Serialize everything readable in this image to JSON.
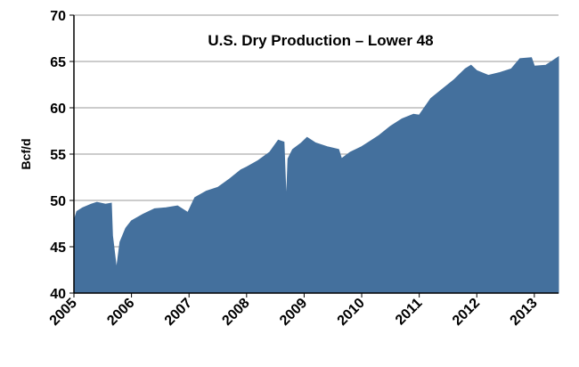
{
  "chart_data": {
    "type": "area",
    "title": "U.S. Dry Production – Lower 48",
    "y_label": "Bcf/d",
    "color": "#44709d",
    "grid": true,
    "xlim": [
      2005,
      2013.42
    ],
    "xticks": [
      2005,
      2006,
      2007,
      2008,
      2009,
      2010,
      2011,
      2012,
      2013
    ],
    "ylim": [
      40,
      70
    ],
    "yticks": [
      40,
      45,
      50,
      55,
      60,
      65,
      70
    ],
    "x": [
      2005.0,
      2005.05,
      2005.15,
      2005.3,
      2005.4,
      2005.55,
      2005.65,
      2005.67,
      2005.74,
      2005.8,
      2005.9,
      2006.0,
      2006.2,
      2006.4,
      2006.6,
      2006.8,
      2006.98,
      2007.1,
      2007.3,
      2007.5,
      2007.7,
      2007.9,
      2008.0,
      2008.2,
      2008.4,
      2008.55,
      2008.65,
      2008.69,
      2008.72,
      2008.8,
      2008.95,
      2009.05,
      2009.2,
      2009.4,
      2009.6,
      2009.65,
      2009.8,
      2010.0,
      2010.1,
      2010.3,
      2010.5,
      2010.7,
      2010.9,
      2011.0,
      2011.2,
      2011.4,
      2011.6,
      2011.8,
      2011.9,
      2012.0,
      2012.2,
      2012.4,
      2012.6,
      2012.75,
      2012.95,
      2013.0,
      2013.2,
      2013.3,
      2013.42
    ],
    "values": [
      47.8,
      48.8,
      49.2,
      49.6,
      49.8,
      49.6,
      49.7,
      46.2,
      42.6,
      45.5,
      47.0,
      47.8,
      48.5,
      49.1,
      49.2,
      49.4,
      48.7,
      50.3,
      51.0,
      51.4,
      52.3,
      53.3,
      53.6,
      54.3,
      55.2,
      56.5,
      56.3,
      49.7,
      54.5,
      55.5,
      56.2,
      56.8,
      56.2,
      55.8,
      55.5,
      54.5,
      55.2,
      55.8,
      56.2,
      57.0,
      58.0,
      58.8,
      59.3,
      59.2,
      61.0,
      62.0,
      63.0,
      64.2,
      64.6,
      64.0,
      63.5,
      63.8,
      64.2,
      65.3,
      65.4,
      64.5,
      64.6,
      65.0,
      65.5
    ]
  }
}
